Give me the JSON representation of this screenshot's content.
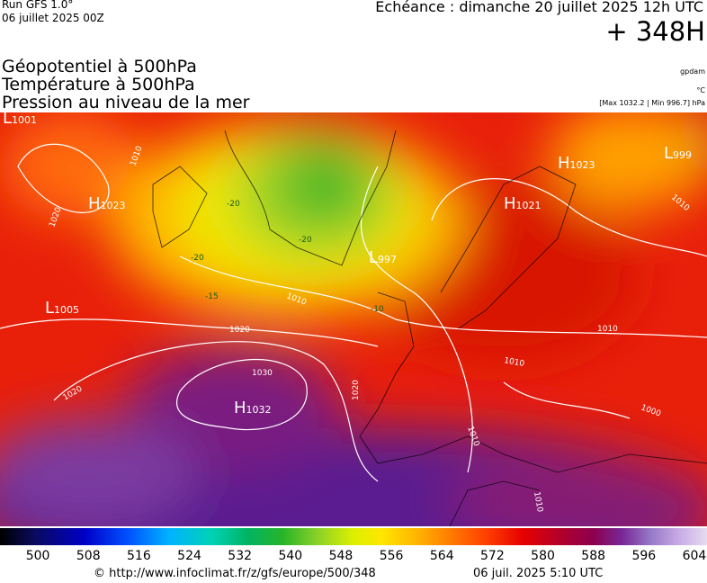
{
  "header": {
    "run": "Run GFS 1.0°",
    "run_date": "06 juillet 2025 00Z",
    "forecast": "Echéance : dimanche 20 juillet 2025 12h UTC",
    "lead": "+ 348H"
  },
  "legend": {
    "fields": [
      "Géopotentiel à 500hPa",
      "Température à 500hPa",
      "Pression au niveau de la mer"
    ],
    "units": [
      "gpdam",
      "°C"
    ],
    "extremes": "[Max 1032.2 | Min 996.7] hPa"
  },
  "map": {
    "centers": [
      {
        "letter": "L",
        "pressure": 1001
      },
      {
        "letter": "H",
        "pressure": 1023
      },
      {
        "letter": "L",
        "pressure": 1005
      },
      {
        "letter": "H",
        "pressure": 1032
      },
      {
        "letter": "L",
        "pressure": 997
      },
      {
        "letter": "H",
        "pressure": 1021
      },
      {
        "letter": "H",
        "pressure": 1023
      },
      {
        "letter": "L",
        "pressure": 999
      }
    ],
    "isobar_labels": [
      1010,
      1020,
      1020,
      1030,
      1020,
      1020,
      1010,
      1010,
      1010,
      1010,
      1010,
      1000,
      1010
    ],
    "temperature_labels": [
      -20,
      -20,
      -20,
      -15,
      -10
    ]
  },
  "colorbar": {
    "lim": [
      494,
      606
    ],
    "ticks": [
      500,
      508,
      516,
      524,
      532,
      540,
      548,
      556,
      564,
      572,
      580,
      588,
      596,
      604
    ]
  },
  "footer": {
    "url": "© http://www.infoclimat.fr/z/gfs/europe/500/348",
    "date": "06 juil. 2025  5:10 UTC"
  }
}
